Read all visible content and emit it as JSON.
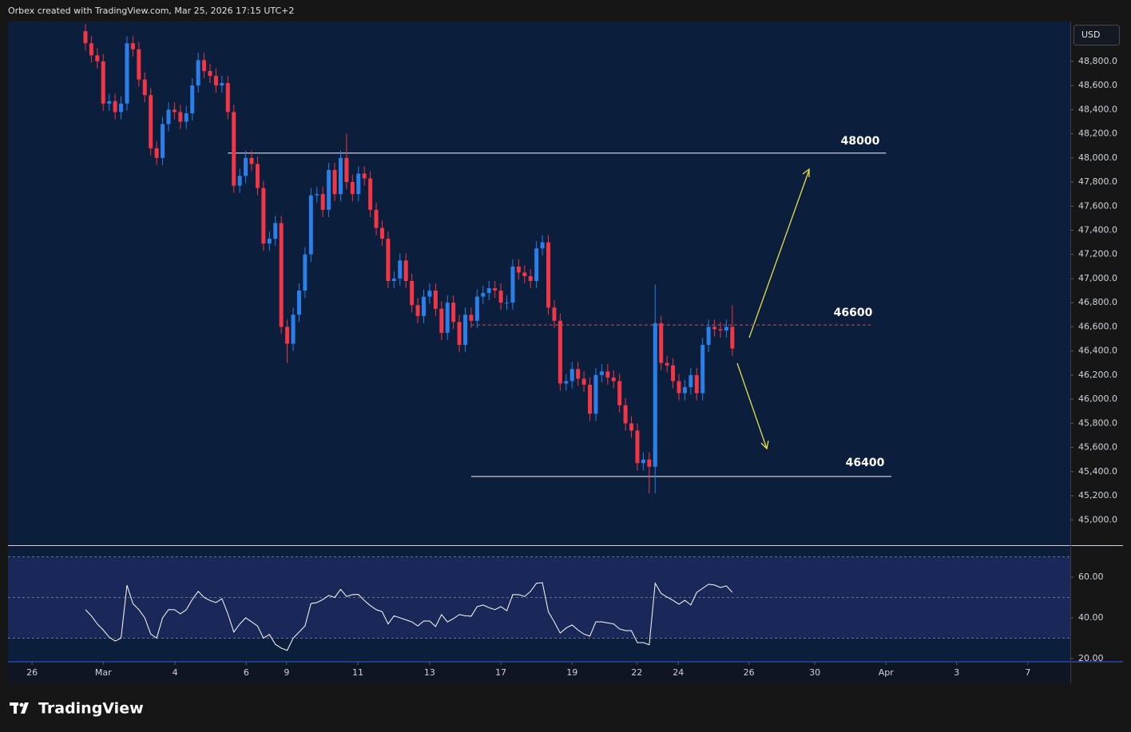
{
  "chart_data": {
    "type": "candlestick",
    "header": "Orbex created with TradingView.com, Mar 25, 2026 17:15 UTC+2",
    "currency": "USD",
    "logo": "TradingView",
    "up_color": "#2a7fe8",
    "down_color": "#f23645",
    "xlim": [
      -13.05,
      165.95
    ],
    "xticks": [
      {
        "value": -9.0,
        "label": "26"
      },
      {
        "value": 3.0,
        "label": "Mar"
      },
      {
        "value": 15.1,
        "label": "4"
      },
      {
        "value": 27.1,
        "label": "6"
      },
      {
        "value": 33.9,
        "label": "9"
      },
      {
        "value": 45.9,
        "label": "11"
      },
      {
        "value": 58.0,
        "label": "13"
      },
      {
        "value": 70.0,
        "label": "17"
      },
      {
        "value": 82.0,
        "label": "19"
      },
      {
        "value": 92.9,
        "label": "22"
      },
      {
        "value": 99.9,
        "label": "24"
      },
      {
        "value": 111.8,
        "label": "26"
      },
      {
        "value": 122.9,
        "label": "30"
      },
      {
        "value": 134.9,
        "label": "Apr"
      },
      {
        "value": 146.8,
        "label": "3"
      },
      {
        "value": 158.8,
        "label": "7"
      }
    ],
    "ylim": [
      44790,
      49130
    ],
    "yticks": [
      {
        "value": 45000,
        "label": "45,000.0"
      },
      {
        "value": 45200,
        "label": "45,200.0"
      },
      {
        "value": 45400,
        "label": "45,400.0"
      },
      {
        "value": 45600,
        "label": "45,600.0"
      },
      {
        "value": 45800,
        "label": "45,800.0"
      },
      {
        "value": 46000,
        "label": "46,000.0"
      },
      {
        "value": 46200,
        "label": "46,200.0"
      },
      {
        "value": 46400,
        "label": "46,400.0"
      },
      {
        "value": 46600,
        "label": "46,600.0"
      },
      {
        "value": 46800,
        "label": "46,800.0"
      },
      {
        "value": 47000,
        "label": "47,000.0"
      },
      {
        "value": 47200,
        "label": "47,200.0"
      },
      {
        "value": 47400,
        "label": "47,400.0"
      },
      {
        "value": 47600,
        "label": "47,600.0"
      },
      {
        "value": 47800,
        "label": "47,800.0"
      },
      {
        "value": 48000,
        "label": "48,000.0"
      },
      {
        "value": 48200,
        "label": "48,200.0"
      },
      {
        "value": 48400,
        "label": "48,400.0"
      },
      {
        "value": 48600,
        "label": "48,600.0"
      },
      {
        "value": 48800,
        "label": "48,800.0"
      }
    ],
    "open": [
      49050,
      48950,
      48850,
      48800,
      48450,
      48470,
      48380,
      48450,
      48950,
      48900,
      48650,
      48520,
      48080,
      48000,
      48280,
      48400,
      48380,
      48300,
      48370,
      48600,
      48810,
      48720,
      48680,
      48600,
      48620,
      48380,
      47770,
      47850,
      48000,
      47950,
      47750,
      47290,
      47330,
      47460,
      46600,
      46460,
      46700,
      46900,
      47200,
      47690,
      47700,
      47570,
      47900,
      47700,
      48000,
      47800,
      47700,
      47870,
      47830,
      47570,
      47420,
      47330,
      46980,
      47000,
      47150,
      46980,
      46780,
      46690,
      46850,
      46900,
      46750,
      46550,
      46800,
      46640,
      46450,
      46700,
      46650,
      46850,
      46880,
      46920,
      46900,
      46800,
      46800,
      47100,
      47050,
      47020,
      46980,
      47250,
      47300,
      46760,
      46650,
      46130,
      46150,
      46250,
      46170,
      46120,
      45880,
      46200,
      46230,
      46180,
      46150,
      45950,
      45800,
      45740,
      45470,
      45500,
      45440,
      46630,
      46300,
      46280,
      46150,
      46050,
      46100,
      46200,
      46050,
      46450,
      46600,
      46580,
      46570,
      46600
    ],
    "high": [
      49110,
      49010,
      48910,
      48860,
      48530,
      48530,
      48510,
      49010,
      49010,
      48960,
      48710,
      48580,
      48140,
      48340,
      48460,
      48460,
      48440,
      48430,
      48660,
      48870,
      48870,
      48780,
      48740,
      48680,
      48680,
      48440,
      47910,
      48060,
      48060,
      48010,
      47810,
      47390,
      47520,
      47520,
      46660,
      46760,
      46960,
      47260,
      47750,
      47760,
      47760,
      47960,
      47960,
      48060,
      48200,
      47860,
      47930,
      47930,
      47890,
      47630,
      47480,
      47390,
      47060,
      47210,
      47210,
      47040,
      46840,
      46910,
      46960,
      46960,
      46810,
      46860,
      46860,
      46700,
      46760,
      46760,
      46910,
      46940,
      46980,
      46980,
      46960,
      46860,
      47160,
      47160,
      47110,
      47080,
      47310,
      47360,
      47360,
      46820,
      46710,
      46210,
      46310,
      46310,
      46230,
      46180,
      46260,
      46290,
      46290,
      46240,
      46210,
      46010,
      45860,
      45800,
      45560,
      45560,
      46950,
      46690,
      46360,
      46340,
      46210,
      46160,
      46260,
      46260,
      46510,
      46660,
      46660,
      46640,
      46660,
      46780
    ],
    "low": [
      48890,
      48790,
      48740,
      48390,
      48390,
      48320,
      48320,
      48390,
      48840,
      48590,
      48460,
      48020,
      47940,
      47940,
      48220,
      48320,
      48240,
      48240,
      48310,
      48540,
      48660,
      48620,
      48540,
      48540,
      48320,
      47710,
      47710,
      47790,
      47890,
      47690,
      47230,
      47230,
      47270,
      46540,
      46300,
      46400,
      46640,
      46840,
      47140,
      47630,
      47510,
      47510,
      47640,
      47640,
      47740,
      47640,
      47640,
      47770,
      47510,
      47360,
      47270,
      46920,
      46920,
      46940,
      46920,
      46720,
      46630,
      46630,
      46790,
      46690,
      46490,
      46490,
      46580,
      46390,
      46390,
      46590,
      46590,
      46790,
      46820,
      46840,
      46740,
      46740,
      46740,
      46990,
      46960,
      46920,
      46920,
      47190,
      46700,
      46590,
      46070,
      46070,
      46090,
      46110,
      46060,
      45820,
      45820,
      46140,
      46120,
      46090,
      45890,
      45740,
      45680,
      45410,
      45410,
      45220,
      45220,
      46240,
      46220,
      46090,
      45990,
      45990,
      46040,
      45990,
      45990,
      46390,
      46520,
      46510,
      46510,
      46360
    ],
    "close": [
      48950,
      48850,
      48800,
      48450,
      48470,
      48380,
      48450,
      48950,
      48900,
      48650,
      48520,
      48080,
      48000,
      48280,
      48400,
      48380,
      48300,
      48370,
      48600,
      48810,
      48720,
      48680,
      48600,
      48620,
      48380,
      47770,
      47850,
      48000,
      47950,
      47750,
      47290,
      47330,
      47460,
      46600,
      46460,
      46700,
      46900,
      47200,
      47690,
      47700,
      47570,
      47900,
      47700,
      48000,
      47800,
      47700,
      47870,
      47830,
      47570,
      47420,
      47330,
      46980,
      47000,
      47150,
      46980,
      46780,
      46690,
      46850,
      46900,
      46750,
      46550,
      46800,
      46640,
      46450,
      46700,
      46650,
      46850,
      46880,
      46920,
      46900,
      46800,
      46800,
      47100,
      47050,
      47020,
      46980,
      47250,
      47300,
      46760,
      46650,
      46130,
      46150,
      46250,
      46170,
      46120,
      45880,
      46200,
      46230,
      46180,
      46150,
      45950,
      45800,
      45740,
      45470,
      45500,
      45440,
      46630,
      46300,
      46280,
      46150,
      46050,
      46100,
      46200,
      46050,
      46450,
      46600,
      46580,
      46570,
      46600,
      46420
    ],
    "levels": [
      {
        "value": 48040,
        "from": 24.0,
        "to": 134.9,
        "color": "#c8ccd6",
        "dashed": false
      },
      {
        "value": 46615,
        "from": 65.0,
        "to": 132.3,
        "color": "#c2394a",
        "dashed": true
      },
      {
        "value": 45360,
        "from": 65.0,
        "to": 135.8,
        "color": "#c8ccd6",
        "dashed": false
      }
    ],
    "annotations": [
      "48000",
      "46600",
      "46400"
    ],
    "rsi": {
      "type": "line",
      "color": "#ffffff",
      "ylim": [
        18.8,
        74.9
      ],
      "yticks": [
        {
          "value": 20,
          "label": "20.00"
        },
        {
          "value": 40,
          "label": "40.00"
        },
        {
          "value": 60,
          "label": "60.00"
        }
      ],
      "bands": [
        70,
        50,
        30
      ],
      "values": [
        44,
        41,
        37,
        34,
        30.5,
        28.6,
        30,
        56,
        47,
        44,
        40,
        32,
        30,
        40,
        44,
        44,
        42,
        44,
        49,
        53,
        50,
        48.5,
        47.5,
        49.4,
        42,
        33,
        36.9,
        40,
        38,
        36,
        30,
        31.8,
        27,
        25.1,
        24,
        30,
        33,
        36,
        47,
        47.5,
        49,
        51,
        50,
        54,
        50.5,
        51.4,
        51.5,
        48.5,
        46,
        44,
        43,
        37,
        41,
        40,
        39,
        38,
        36,
        38.4,
        38.4,
        35.7,
        41.6,
        38,
        39.6,
        41.6,
        41,
        40.8,
        45.5,
        46.3,
        45,
        44,
        45.5,
        43.5,
        51.4,
        51.4,
        50.5,
        53,
        57,
        57.3,
        43,
        38,
        32.5,
        35,
        36.5,
        34,
        32,
        31,
        38,
        38,
        37.5,
        37,
        34.5,
        33.7,
        33.7,
        27.8,
        27.8,
        26.7,
        57,
        52,
        50.2,
        48.6,
        46.7,
        48.6,
        46.3,
        52.5,
        54.5,
        56.5,
        56.1,
        54.9,
        55.7,
        52.5
      ]
    }
  }
}
